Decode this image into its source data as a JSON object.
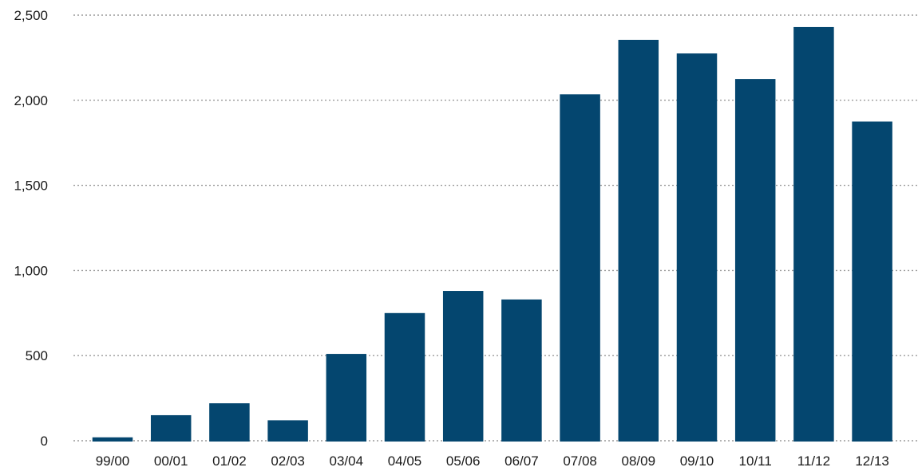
{
  "chart_data": {
    "type": "bar",
    "categories": [
      "99/00",
      "00/01",
      "01/02",
      "02/03",
      "03/04",
      "04/05",
      "05/06",
      "06/07",
      "07/08",
      "08/09",
      "09/10",
      "10/11",
      "11/12",
      "12/13"
    ],
    "values": [
      20,
      150,
      220,
      120,
      510,
      750,
      880,
      830,
      2035,
      2355,
      2275,
      2125,
      2430,
      1875
    ],
    "title": "",
    "xlabel": "",
    "ylabel": "",
    "ylim": [
      0,
      2500
    ],
    "yticks": [
      0,
      500,
      1000,
      1500,
      2000,
      2500
    ],
    "ytick_labels": [
      "0",
      "500",
      "1,000",
      "1,500",
      "2,000",
      "2,500"
    ],
    "grid": true,
    "legend": false,
    "bar_color": "#04466f"
  }
}
